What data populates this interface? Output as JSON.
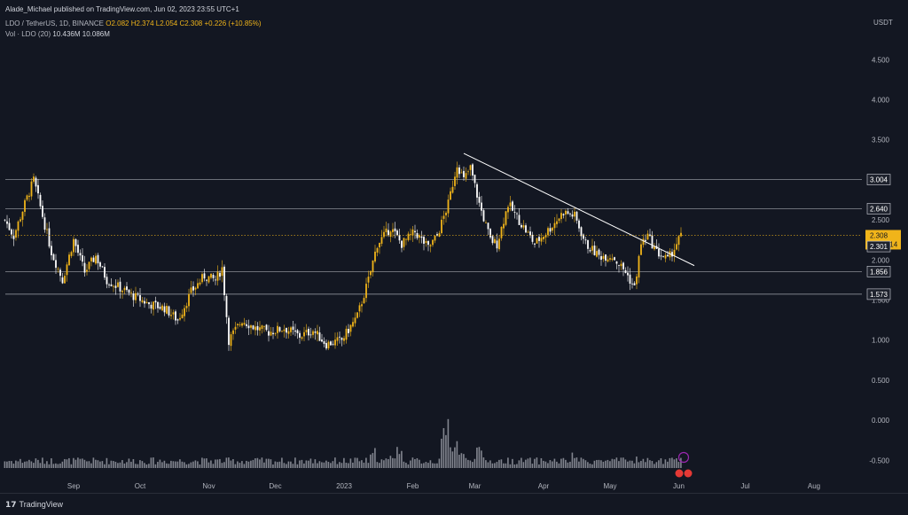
{
  "header": {
    "publisher": "Alade_Michael published on TradingView.com, Jun 02, 2023 23:55 UTC+1",
    "symbol": "LDO / TetherUS, 1D, BINANCE",
    "o": "O2.082",
    "h": "H2.374",
    "l": "L2.054",
    "c": "C2.308",
    "chg": "+0.226 (+10.85%)",
    "vol_label": "Vol · LDO (20)",
    "vol1": "10.436M",
    "vol2": "10.086M"
  },
  "footer": {
    "brand": "TradingView"
  },
  "colors": {
    "bg": "#131722",
    "up": "#f0b41a",
    "down": "#ffffff",
    "grid": "#2a2e39",
    "price_line": "#f0b41a",
    "volume": "#b2b5be"
  },
  "chart_data": {
    "type": "candlestick",
    "y_unit": "USDT",
    "ylim": [
      -0.6,
      4.9
    ],
    "yticks": [
      "4.500",
      "4.000",
      "3.500",
      "3.000",
      "2.500",
      "2.000",
      "1.500",
      "1.000",
      "0.500",
      "0.000",
      "-0.500"
    ],
    "x_labels": [
      "Sep",
      "Oct",
      "Nov",
      "Dec",
      "2023",
      "Feb",
      "Mar",
      "Apr",
      "May",
      "Jun",
      "Jul",
      "Aug"
    ],
    "horizontal_levels": [
      {
        "value": 3.004,
        "label": "3.004"
      },
      {
        "value": 2.64,
        "label": "2.640"
      },
      {
        "value": 1.856,
        "label": "1.856"
      },
      {
        "value": 1.573,
        "label": "1.573"
      }
    ],
    "current_price": {
      "value": 2.308,
      "label": "2.308",
      "countdown": "01:04:14"
    },
    "secondary_price": {
      "value": 2.301,
      "label": "2.301"
    },
    "trendline": {
      "from": {
        "date": "2023-02-24",
        "price": 3.33
      },
      "to": {
        "date": "2023-06-08",
        "price": 1.93
      }
    },
    "close_path": [
      {
        "date": "2022-08-01",
        "price": 2.5
      },
      {
        "date": "2022-08-05",
        "price": 2.3
      },
      {
        "date": "2022-08-10",
        "price": 2.7
      },
      {
        "date": "2022-08-14",
        "price": 3.0
      },
      {
        "date": "2022-08-18",
        "price": 2.55
      },
      {
        "date": "2022-08-22",
        "price": 2.1
      },
      {
        "date": "2022-08-27",
        "price": 1.75
      },
      {
        "date": "2022-09-01",
        "price": 2.25
      },
      {
        "date": "2022-09-06",
        "price": 1.85
      },
      {
        "date": "2022-09-11",
        "price": 2.05
      },
      {
        "date": "2022-09-16",
        "price": 1.75
      },
      {
        "date": "2022-09-22",
        "price": 1.65
      },
      {
        "date": "2022-09-28",
        "price": 1.55
      },
      {
        "date": "2022-10-05",
        "price": 1.45
      },
      {
        "date": "2022-10-12",
        "price": 1.4
      },
      {
        "date": "2022-10-18",
        "price": 1.25
      },
      {
        "date": "2022-10-24",
        "price": 1.6
      },
      {
        "date": "2022-10-30",
        "price": 1.8
      },
      {
        "date": "2022-11-04",
        "price": 1.75
      },
      {
        "date": "2022-11-07",
        "price": 1.9
      },
      {
        "date": "2022-11-10",
        "price": 1.0
      },
      {
        "date": "2022-11-16",
        "price": 1.25
      },
      {
        "date": "2022-11-22",
        "price": 1.15
      },
      {
        "date": "2022-11-28",
        "price": 1.1
      },
      {
        "date": "2022-12-05",
        "price": 1.15
      },
      {
        "date": "2022-12-12",
        "price": 1.05
      },
      {
        "date": "2022-12-18",
        "price": 1.12
      },
      {
        "date": "2022-12-24",
        "price": 0.95
      },
      {
        "date": "2022-12-31",
        "price": 1.0
      },
      {
        "date": "2023-01-07",
        "price": 1.3
      },
      {
        "date": "2023-01-12",
        "price": 1.75
      },
      {
        "date": "2023-01-16",
        "price": 2.2
      },
      {
        "date": "2023-01-22",
        "price": 2.4
      },
      {
        "date": "2023-01-27",
        "price": 2.2
      },
      {
        "date": "2023-02-02",
        "price": 2.35
      },
      {
        "date": "2023-02-08",
        "price": 2.15
      },
      {
        "date": "2023-02-12",
        "price": 2.3
      },
      {
        "date": "2023-02-17",
        "price": 2.7
      },
      {
        "date": "2023-02-21",
        "price": 3.2
      },
      {
        "date": "2023-02-24",
        "price": 3.0
      },
      {
        "date": "2023-02-27",
        "price": 3.15
      },
      {
        "date": "2023-03-03",
        "price": 2.7
      },
      {
        "date": "2023-03-08",
        "price": 2.25
      },
      {
        "date": "2023-03-11",
        "price": 2.2
      },
      {
        "date": "2023-03-16",
        "price": 2.7
      },
      {
        "date": "2023-03-22",
        "price": 2.45
      },
      {
        "date": "2023-03-28",
        "price": 2.2
      },
      {
        "date": "2023-04-04",
        "price": 2.4
      },
      {
        "date": "2023-04-10",
        "price": 2.6
      },
      {
        "date": "2023-04-15",
        "price": 2.55
      },
      {
        "date": "2023-04-20",
        "price": 2.2
      },
      {
        "date": "2023-04-26",
        "price": 2.05
      },
      {
        "date": "2023-05-02",
        "price": 2.05
      },
      {
        "date": "2023-05-08",
        "price": 1.85
      },
      {
        "date": "2023-05-12",
        "price": 1.65
      },
      {
        "date": "2023-05-15",
        "price": 2.2
      },
      {
        "date": "2023-05-18",
        "price": 2.3
      },
      {
        "date": "2023-05-22",
        "price": 2.1
      },
      {
        "date": "2023-05-27",
        "price": 2.0
      },
      {
        "date": "2023-05-30",
        "price": 2.15
      },
      {
        "date": "2023-06-02",
        "price": 2.31
      }
    ],
    "volume_series": [
      {
        "date": "2023-01-15",
        "value": 16
      },
      {
        "date": "2023-01-25",
        "value": 22
      },
      {
        "date": "2023-02-17",
        "value": 46
      },
      {
        "date": "2023-02-21",
        "value": 26
      },
      {
        "date": "2023-03-02",
        "value": 20
      },
      {
        "date": "2023-04-15",
        "value": 14
      },
      {
        "date": "2023-05-14",
        "value": 12
      }
    ],
    "volume_scale_max": 50
  }
}
